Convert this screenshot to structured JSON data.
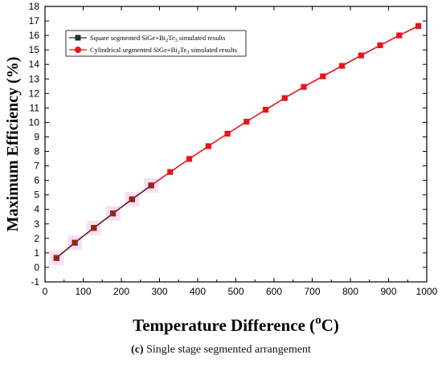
{
  "caption": {
    "label": "(c)",
    "text": "Single stage segmented arrangement"
  },
  "chart_data": {
    "type": "line",
    "title": "",
    "xlabel_main": "Temperature Difference (",
    "xlabel_sup": "o",
    "xlabel_end": "C)",
    "ylabel": "Maximum Efficiency (%)",
    "xlim": [
      0,
      1000
    ],
    "ylim": [
      -1,
      18
    ],
    "xticks": [
      0,
      100,
      200,
      300,
      400,
      500,
      600,
      700,
      800,
      900,
      1000
    ],
    "yticks": [
      -1,
      0,
      1,
      2,
      3,
      4,
      5,
      6,
      7,
      8,
      9,
      10,
      11,
      12,
      13,
      14,
      15,
      16,
      17,
      18
    ],
    "grid": false,
    "legend_position": "top-left",
    "colors": {
      "square": "#2a2a2a",
      "cylindrical": "#e8141c",
      "highlight": "#f3c3ee"
    },
    "series": [
      {
        "name_prefix": "Square segmented SiGe+Bi",
        "name_sub1": "2",
        "name_mid": "Te",
        "name_sub2": "3",
        "name_suffix": " simulated results",
        "marker": "square",
        "x": [
          30,
          78,
          128,
          178,
          228,
          278
        ],
        "y": [
          0.65,
          1.7,
          2.72,
          3.72,
          4.7,
          5.65
        ]
      },
      {
        "name_prefix": "Cylindrical segmented SiGe+Bi",
        "name_sub1": "2",
        "name_mid": "Te",
        "name_sub2": "3",
        "name_suffix": " simulated results",
        "marker": "circle",
        "x": [
          30,
          78,
          128,
          178,
          228,
          278,
          328,
          378,
          428,
          478,
          528,
          578,
          628,
          678,
          728,
          778,
          828,
          878,
          928,
          978
        ],
        "y": [
          0.65,
          1.7,
          2.72,
          3.72,
          4.7,
          5.65,
          6.58,
          7.48,
          8.36,
          9.22,
          10.05,
          10.87,
          11.68,
          12.45,
          13.18,
          13.9,
          14.62,
          15.32,
          16.0,
          16.65
        ]
      }
    ]
  }
}
